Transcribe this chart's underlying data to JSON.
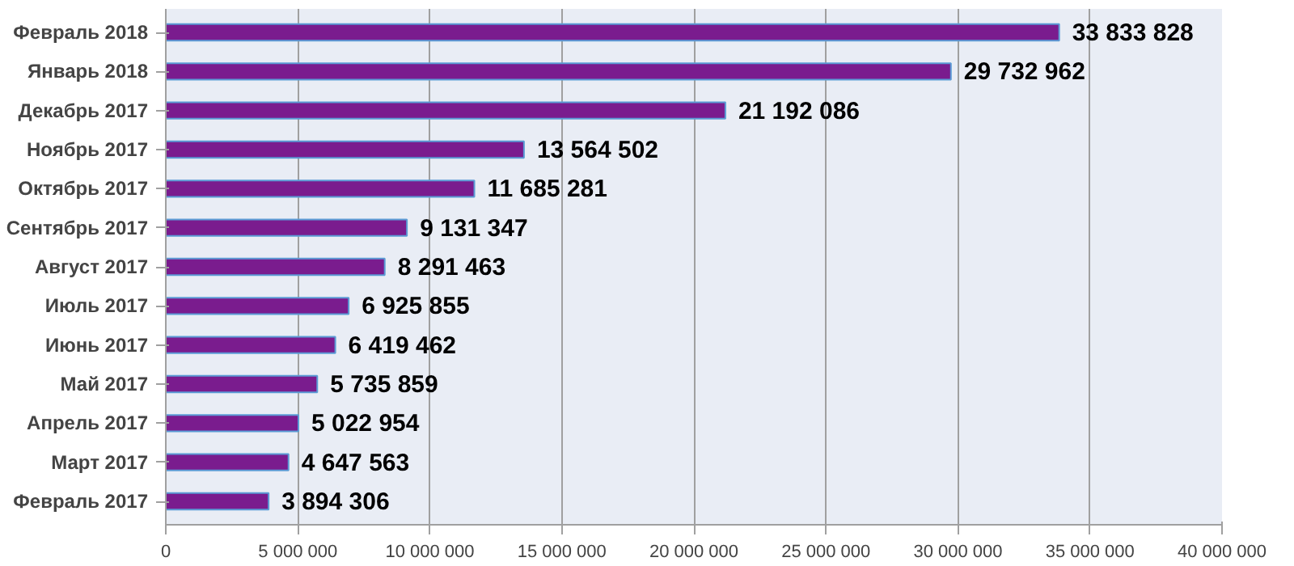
{
  "chart_data": {
    "type": "bar",
    "orientation": "horizontal",
    "categories": [
      "Февраль 2018",
      "Январь 2018",
      "Декабрь 2017",
      "Ноябрь 2017",
      "Октябрь 2017",
      "Сентябрь 2017",
      "Август 2017",
      "Июль 2017",
      "Июнь 2017",
      "Май 2017",
      "Апрель 2017",
      "Март 2017",
      "Февраль 2017"
    ],
    "values": [
      33833828,
      29732962,
      21192086,
      13564502,
      11685281,
      9131347,
      8291463,
      6925855,
      6419462,
      5735859,
      5022954,
      4647563,
      3894306
    ],
    "value_labels": [
      "33 833 828",
      "29 732 962",
      "21 192 086",
      "13 564 502",
      "11 685 281",
      "9 131 347",
      "8 291 463",
      "6 925 855",
      "6 419 462",
      "5 735 859",
      "5 022 954",
      "4 647 563",
      "3 894 306"
    ],
    "color": "#7a1c8e",
    "xlim": [
      0,
      40000000
    ],
    "xticks": [
      0,
      {
        "value": 5000000,
        "label": "5 000 000"
      },
      {
        "value": 10000000,
        "label": "10 000 000"
      },
      {
        "value": 15000000,
        "label": "15 000 000"
      },
      {
        "value": 20000000,
        "label": "20 000 000"
      },
      {
        "value": 25000000,
        "label": "25 000 000"
      },
      {
        "value": 30000000,
        "label": "30 000 000"
      },
      {
        "value": 35000000,
        "label": "35 000 000"
      },
      {
        "value": 40000000,
        "label": "40 000 000"
      }
    ],
    "grid": "x"
  }
}
